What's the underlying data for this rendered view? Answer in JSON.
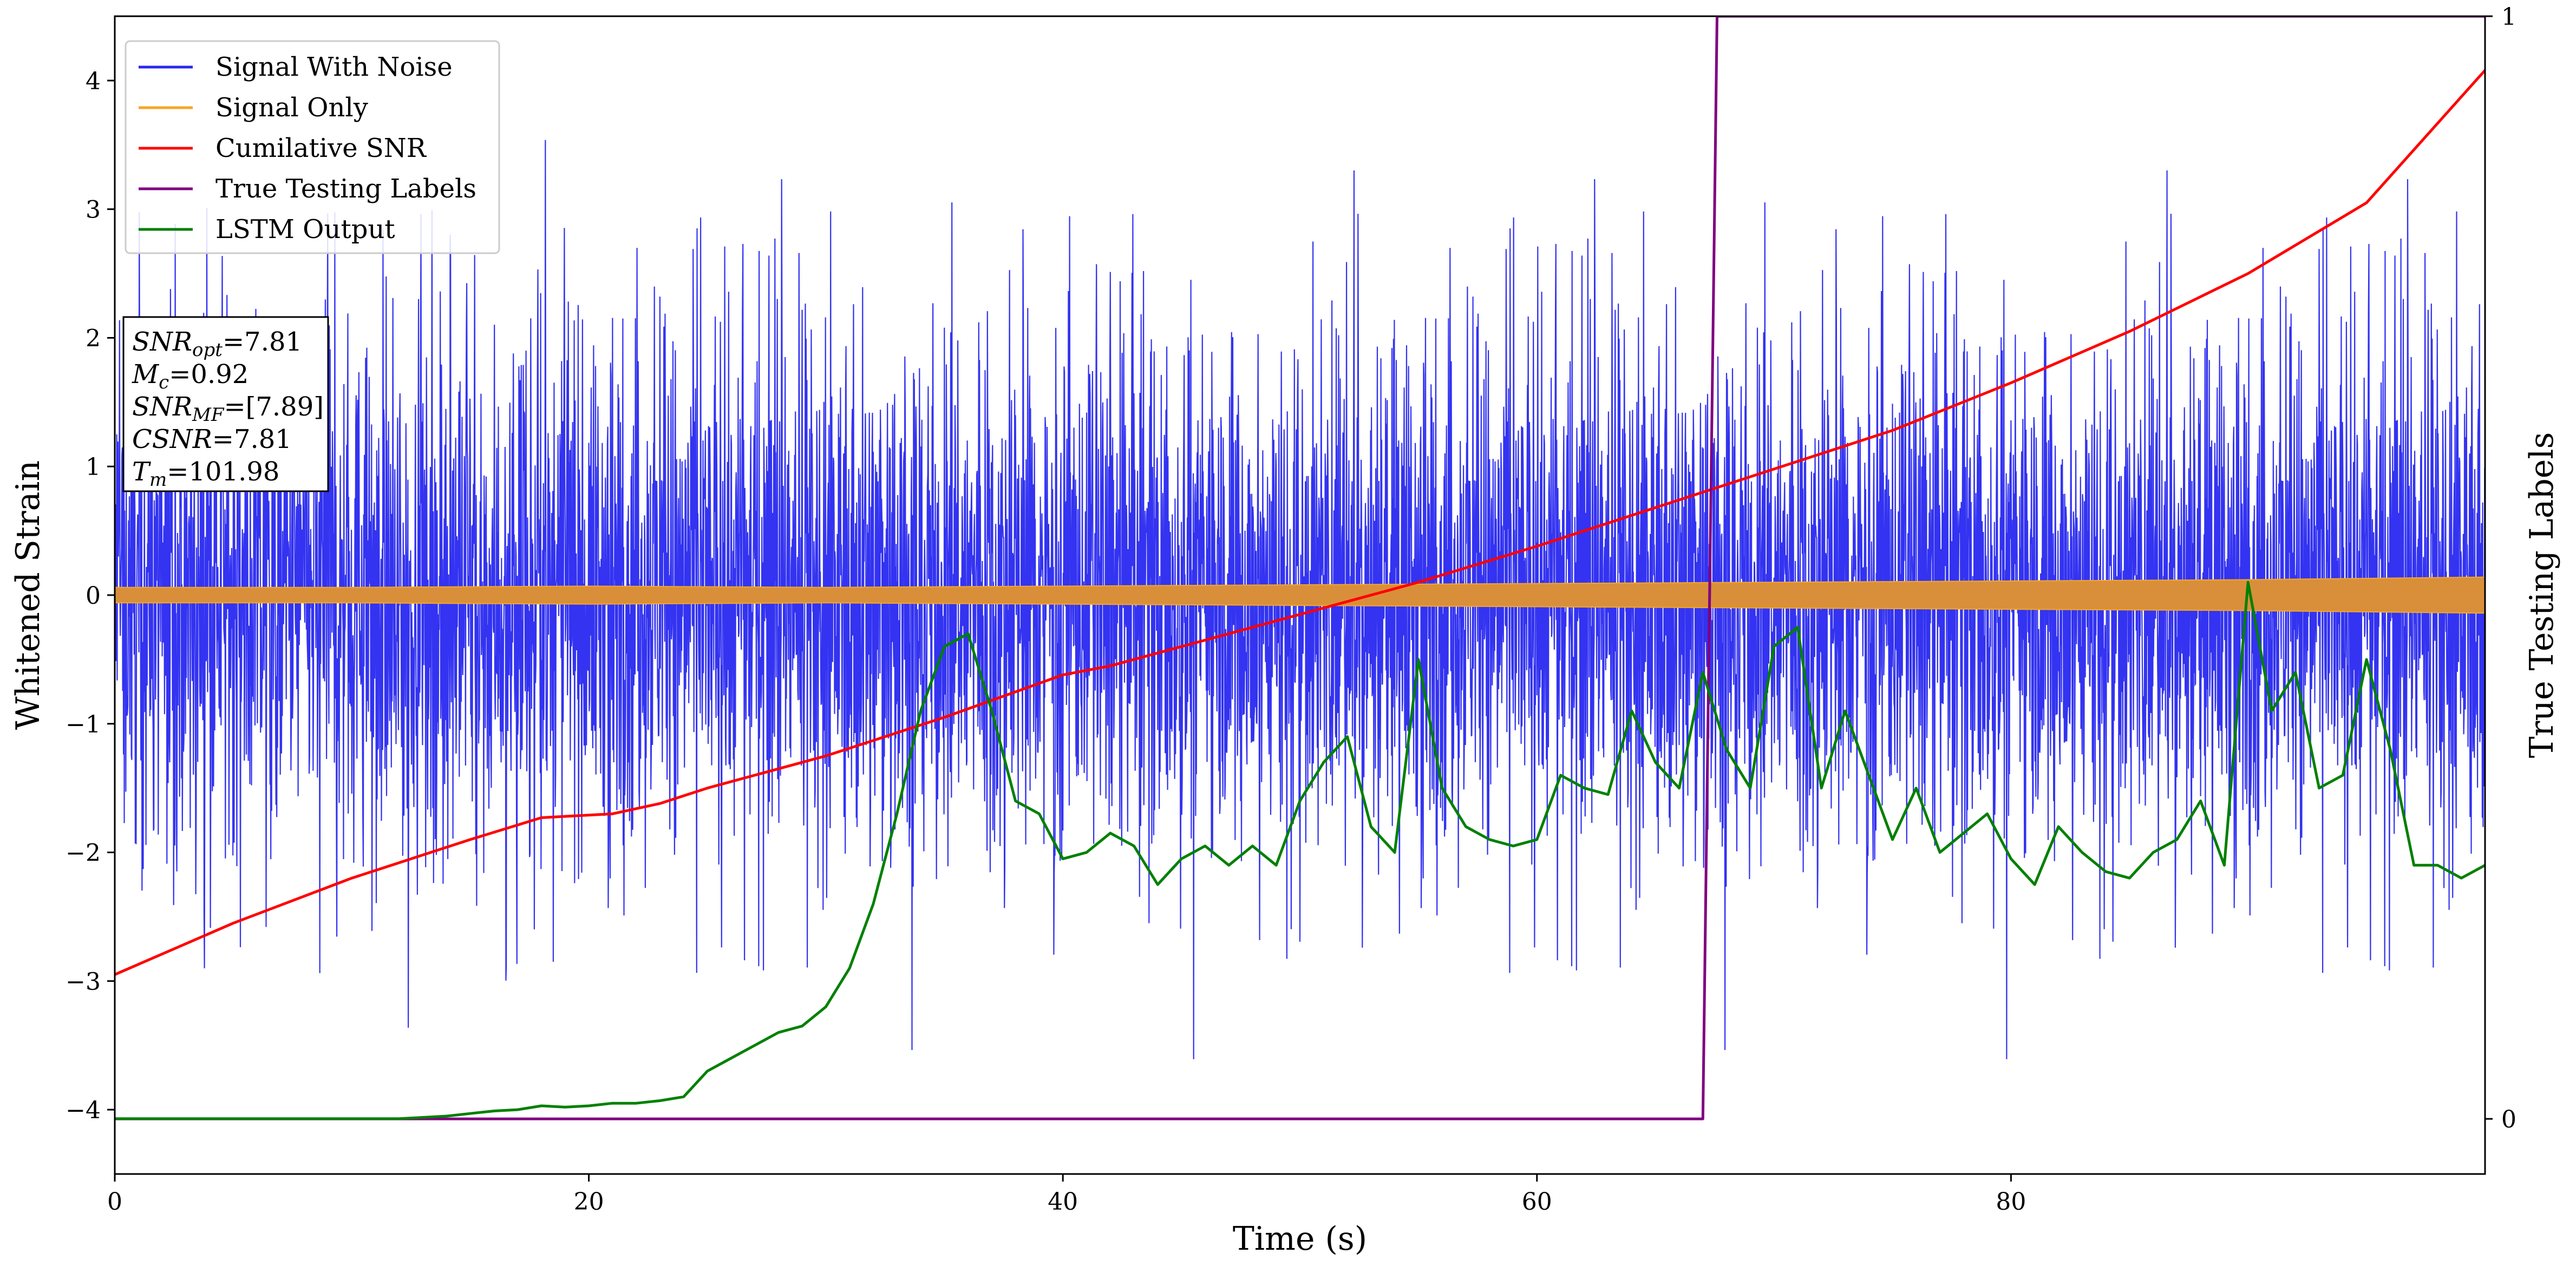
{
  "chart_data": {
    "type": "line",
    "xlabel": "Time (s)",
    "ylabel": "Whitened Strain",
    "y2label": "True Testing Labels",
    "xlim": [
      0,
      100
    ],
    "ylim": [
      -4.5,
      4.5
    ],
    "y2lim": [
      -0.05,
      1.0
    ],
    "x_ticks": [
      0,
      20,
      40,
      60,
      80
    ],
    "y_ticks": [
      -4,
      -3,
      -2,
      -1,
      0,
      1,
      2,
      3,
      4
    ],
    "y2_ticks": [
      0,
      1
    ],
    "grid": false,
    "legend_position": "top-left",
    "annotation": [
      {
        "var": "SNR",
        "sub": "opt",
        "value": "=7.81"
      },
      {
        "var": "M",
        "sub": "c",
        "value": "=0.92"
      },
      {
        "var": "SNR",
        "sub": "MF",
        "value": "=[7.89]"
      },
      {
        "var": "CSNR",
        "sub": "",
        "value": "=7.81"
      },
      {
        "var": "T",
        "sub": "m",
        "value": "=101.98"
      }
    ],
    "series": [
      {
        "name": "Signal With Noise",
        "color": "#2828f0",
        "kind": "noise",
        "amplitude_band": [
          -1.9,
          1.9
        ],
        "spike_max": [
          3.55,
          -3.85
        ]
      },
      {
        "name": "Signal Only",
        "color": "#f5a623",
        "kind": "envelope",
        "x": [
          0,
          10,
          20,
          30,
          40,
          50,
          60,
          70,
          80,
          90,
          100
        ],
        "half_width": [
          0.06,
          0.06,
          0.07,
          0.06,
          0.07,
          0.08,
          0.09,
          0.1,
          0.11,
          0.12,
          0.14
        ]
      },
      {
        "name": "Cumilative SNR",
        "color": "#ff0000",
        "axis": "left",
        "x": [
          0,
          5,
          10,
          15,
          18,
          21,
          23,
          25,
          30,
          35,
          40,
          42,
          45,
          50,
          55,
          60,
          65,
          70,
          75,
          80,
          85,
          90,
          95,
          100
        ],
        "y": [
          -2.95,
          -2.55,
          -2.2,
          -1.9,
          -1.73,
          -1.7,
          -1.62,
          -1.5,
          -1.25,
          -0.95,
          -0.62,
          -0.55,
          -0.4,
          -0.15,
          0.1,
          0.38,
          0.68,
          0.98,
          1.28,
          1.65,
          2.05,
          2.5,
          3.05,
          4.08
        ]
      },
      {
        "name": "True Testing Labels",
        "color": "#800080",
        "axis": "right",
        "x": [
          0,
          67.0,
          67.6,
          100
        ],
        "y": [
          0,
          0,
          1,
          1
        ]
      },
      {
        "name": "LSTM Output",
        "color": "#008000",
        "axis": "left",
        "x": [
          0,
          10,
          12,
          14,
          15,
          16,
          17,
          18,
          19,
          20,
          21,
          22,
          23,
          24,
          25,
          26,
          27,
          28,
          29,
          30,
          31,
          32,
          33,
          34,
          35,
          36,
          37,
          38,
          39,
          40,
          41,
          42,
          43,
          44,
          45,
          46,
          47,
          48,
          49,
          50,
          51,
          52,
          53,
          54,
          55,
          56,
          57,
          58,
          59,
          60,
          61,
          62,
          63,
          64,
          65,
          66,
          67,
          68,
          69,
          70,
          71,
          72,
          73,
          74,
          75,
          76,
          77,
          78,
          79,
          80,
          81,
          82,
          83,
          84,
          85,
          86,
          87,
          88,
          89,
          90,
          91,
          92,
          93,
          94,
          95,
          96,
          97,
          98,
          99,
          100
        ],
        "y": [
          -4.07,
          -4.07,
          -4.07,
          -4.05,
          -4.03,
          -4.01,
          -4.0,
          -3.97,
          -3.98,
          -3.97,
          -3.95,
          -3.95,
          -3.93,
          -3.9,
          -3.7,
          -3.6,
          -3.5,
          -3.4,
          -3.35,
          -3.2,
          -2.9,
          -2.4,
          -1.7,
          -0.9,
          -0.4,
          -0.3,
          -0.9,
          -1.6,
          -1.7,
          -2.05,
          -2.0,
          -1.85,
          -1.95,
          -2.25,
          -2.05,
          -1.95,
          -2.1,
          -1.95,
          -2.1,
          -1.6,
          -1.3,
          -1.1,
          -1.8,
          -2.0,
          -0.5,
          -1.5,
          -1.8,
          -1.9,
          -1.95,
          -1.9,
          -1.4,
          -1.5,
          -1.55,
          -0.9,
          -1.3,
          -1.5,
          -0.6,
          -1.2,
          -1.5,
          -0.4,
          -0.25,
          -1.5,
          -0.9,
          -1.4,
          -1.9,
          -1.5,
          -2.0,
          -1.85,
          -1.7,
          -2.05,
          -2.25,
          -1.8,
          -2.0,
          -2.15,
          -2.2,
          -2.0,
          -1.9,
          -1.6,
          -2.1,
          0.1,
          -0.9,
          -0.6,
          -1.5,
          -1.4,
          -0.5,
          -1.2,
          -2.1,
          -2.1,
          -2.2,
          -2.1
        ]
      }
    ]
  }
}
